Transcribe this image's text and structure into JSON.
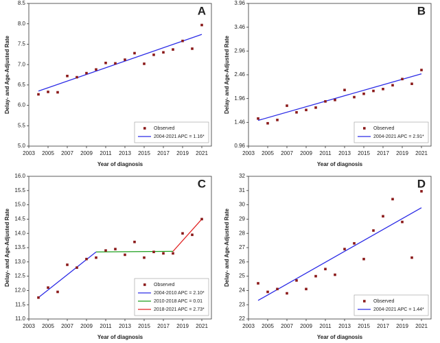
{
  "chart_data": [
    {
      "type": "scatter",
      "title": "A",
      "x_label": "Year of diagnosis",
      "y_label": "Delay- and Age-Adjusted Rate",
      "x": [
        2004,
        2005,
        2006,
        2007,
        2008,
        2009,
        2010,
        2011,
        2012,
        2013,
        2014,
        2015,
        2016,
        2017,
        2018,
        2019,
        2020,
        2021
      ],
      "series": [
        {
          "name": "Observed",
          "color": "#8b1a1a",
          "values": [
            6.27,
            6.33,
            6.32,
            6.72,
            6.69,
            6.79,
            6.88,
            7.04,
            7.03,
            7.12,
            7.28,
            7.02,
            7.24,
            7.3,
            7.37,
            7.58,
            7.39,
            7.97
          ]
        }
      ],
      "fits": [
        {
          "name": "2004-2021 APC = 1.16*",
          "color": "#2a2ae6",
          "x": [
            2004,
            2021
          ],
          "values": [
            6.35,
            7.74
          ]
        }
      ],
      "xlim": [
        2003,
        2022
      ],
      "xticks": [
        2003,
        2005,
        2007,
        2009,
        2011,
        2013,
        2015,
        2017,
        2019,
        2021
      ],
      "ylim": [
        5,
        8.5
      ],
      "yticks": [
        {
          "value": 5,
          "label": "5.0"
        },
        5.5,
        {
          "value": 6,
          "label": "6.0"
        },
        6.5,
        {
          "value": 7,
          "label": "7.0"
        },
        7.5,
        {
          "value": 8,
          "label": "8.0"
        },
        8.5
      ]
    },
    {
      "type": "scatter",
      "title": "B",
      "x_label": "Year of diagnosis",
      "y_label": "Delay- and Age-Adjusted Rate",
      "x": [
        2004,
        2005,
        2006,
        2007,
        2008,
        2009,
        2010,
        2011,
        2012,
        2013,
        2014,
        2015,
        2016,
        2017,
        2018,
        2019,
        2020,
        2021
      ],
      "series": [
        {
          "name": "Observed",
          "color": "#8b1a1a",
          "values": [
            1.54,
            1.44,
            1.51,
            1.81,
            1.67,
            1.72,
            1.77,
            1.9,
            1.93,
            2.14,
            1.99,
            2.06,
            2.12,
            2.16,
            2.24,
            2.37,
            2.27,
            2.56
          ]
        }
      ],
      "fits": [
        {
          "name": "2004-2021 APC = 2.91*",
          "color": "#2a2ae6",
          "x": [
            2004,
            2021
          ],
          "values": [
            1.5,
            2.48
          ]
        }
      ],
      "xlim": [
        2003,
        2022
      ],
      "xticks": [
        2003,
        2005,
        2007,
        2009,
        2011,
        2013,
        2015,
        2017,
        2019,
        2021
      ],
      "ylim": [
        0.96,
        3.96
      ],
      "yticks": [
        0.96,
        1.46,
        1.96,
        2.46,
        2.96,
        3.46,
        3.96
      ]
    },
    {
      "type": "scatter",
      "title": "C",
      "x_label": "Year of diagnosis",
      "y_label": "Delay- and Age-Adjusted Rate",
      "x": [
        2004,
        2005,
        2006,
        2007,
        2008,
        2009,
        2010,
        2011,
        2012,
        2013,
        2014,
        2015,
        2016,
        2017,
        2018,
        2019,
        2020,
        2021
      ],
      "series": [
        {
          "name": "Observed",
          "color": "#8b1a1a",
          "values": [
            11.75,
            12.1,
            11.95,
            12.9,
            12.8,
            13.1,
            13.15,
            13.4,
            13.45,
            13.25,
            13.7,
            13.15,
            13.35,
            13.3,
            13.3,
            14.0,
            13.95,
            14.5
          ]
        }
      ],
      "fits": [
        {
          "name": "2004-2010 APC = 2.10*",
          "color": "#2a2ae6",
          "x": [
            2004,
            2010
          ],
          "values": [
            11.75,
            13.35
          ]
        },
        {
          "name": "2010-2018 APC = 0.01",
          "color": "#1a9e1a",
          "x": [
            2010,
            2018
          ],
          "values": [
            13.35,
            13.37
          ]
        },
        {
          "name": "2018-2021 APC = 2.73*",
          "color": "#e02020",
          "x": [
            2018,
            2021
          ],
          "values": [
            13.37,
            14.5
          ]
        }
      ],
      "xlim": [
        2003,
        2022
      ],
      "xticks": [
        2003,
        2005,
        2007,
        2009,
        2011,
        2013,
        2015,
        2017,
        2019,
        2021
      ],
      "ylim": [
        11,
        16
      ],
      "yticks": [
        {
          "value": 11,
          "label": "11.0"
        },
        11.5,
        {
          "value": 12,
          "label": "12.0"
        },
        12.5,
        {
          "value": 13,
          "label": "13.0"
        },
        13.5,
        {
          "value": 14,
          "label": "14.0"
        },
        14.5,
        {
          "value": 15,
          "label": "15.0"
        },
        15.5,
        {
          "value": 16,
          "label": "16.0"
        }
      ]
    },
    {
      "type": "scatter",
      "title": "D",
      "x_label": "Year of diagnosis",
      "y_label": "Delay- and Age-Adjusted Rate",
      "x": [
        2004,
        2005,
        2006,
        2007,
        2008,
        2009,
        2010,
        2011,
        2012,
        2013,
        2014,
        2015,
        2016,
        2017,
        2018,
        2019,
        2020,
        2021
      ],
      "series": [
        {
          "name": "Observed",
          "color": "#8b1a1a",
          "values": [
            24.5,
            23.9,
            24.1,
            23.8,
            24.7,
            24.1,
            25.0,
            25.5,
            25.1,
            26.9,
            27.3,
            26.2,
            28.2,
            29.2,
            30.4,
            28.8,
            26.3,
            30.95
          ]
        }
      ],
      "fits": [
        {
          "name": "2004-2021 APC = 1.44*",
          "color": "#2a2ae6",
          "x": [
            2004,
            2021
          ],
          "values": [
            23.3,
            29.8
          ]
        }
      ],
      "xlim": [
        2003,
        2022
      ],
      "xticks": [
        2003,
        2005,
        2007,
        2009,
        2011,
        2013,
        2015,
        2017,
        2019,
        2021
      ],
      "ylim": [
        22,
        32
      ],
      "yticks": [
        22,
        23,
        24,
        25,
        26,
        27,
        28,
        29,
        30,
        31,
        32
      ]
    }
  ]
}
